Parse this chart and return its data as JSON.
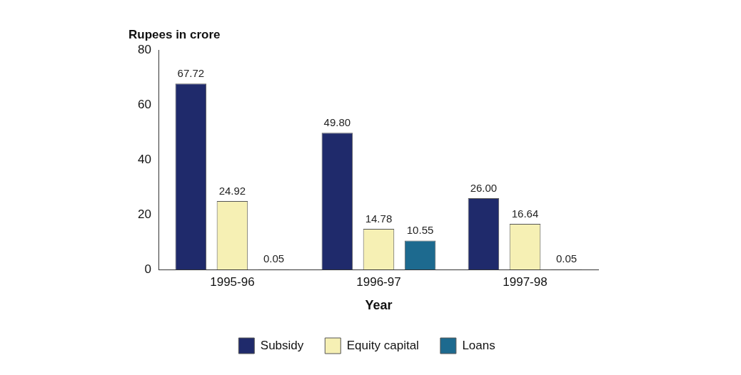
{
  "chart_data": {
    "type": "bar",
    "ylabel": "Rupees in crore",
    "xlabel": "Year",
    "categories": [
      "1995-96",
      "1996-97",
      "1997-98"
    ],
    "series": [
      {
        "name": "Subsidy",
        "color": "#1f2a6b",
        "values": [
          67.72,
          49.8,
          26
        ],
        "value_labels": [
          "67.72",
          "49.80",
          "26.00"
        ]
      },
      {
        "name": "Equity capital",
        "color": "#f6f0b4",
        "values": [
          24.92,
          14.78,
          16.64
        ],
        "value_labels": [
          "24.92",
          "14.78",
          "16.64"
        ]
      },
      {
        "name": "Loans",
        "color": "#1d6a8f",
        "values": [
          0.05,
          10.55,
          0.05
        ],
        "value_labels": [
          "0.05",
          "10.55",
          "0.05"
        ]
      }
    ],
    "ylim": [
      0,
      80
    ],
    "yticks": [
      0,
      20,
      40,
      60,
      80
    ],
    "grid": false,
    "legend": "bottom"
  }
}
